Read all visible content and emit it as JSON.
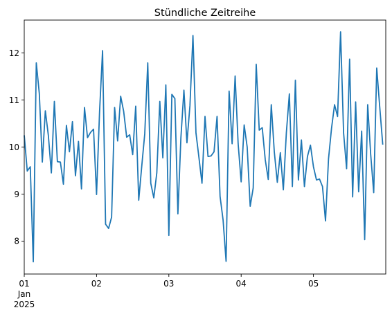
{
  "chart_data": {
    "type": "line",
    "title": "Stündliche Zeitreihe",
    "xlabel": "",
    "ylabel": "",
    "x_start": "2025-01-01T00:00",
    "x_end": "2025-01-06T00:00",
    "xlim": [
      "2025-01-01T00:00",
      "2025-01-06T00:00"
    ],
    "ylim": [
      7.3,
      12.7
    ],
    "grid": false,
    "x_ticks": [
      {
        "x": "2025-01-01T00:00",
        "lines": [
          "01",
          "Jan",
          "2025"
        ]
      },
      {
        "x": "2025-01-02T00:00",
        "lines": [
          "02"
        ]
      },
      {
        "x": "2025-01-03T00:00",
        "lines": [
          "03"
        ]
      },
      {
        "x": "2025-01-04T00:00",
        "lines": [
          "04"
        ]
      },
      {
        "x": "2025-01-05T00:00",
        "lines": [
          "05"
        ]
      }
    ],
    "y_ticks": [
      8,
      9,
      10,
      11,
      12
    ],
    "series": [
      {
        "color": "#1f77b4",
        "x_step_hours": 1,
        "values": [
          10.25,
          9.49,
          9.58,
          7.56,
          11.79,
          11.14,
          9.68,
          10.77,
          10.25,
          9.45,
          10.97,
          9.69,
          9.68,
          9.21,
          10.46,
          9.9,
          10.54,
          9.39,
          10.12,
          9.11,
          10.84,
          10.2,
          10.31,
          10.38,
          8.99,
          10.75,
          12.05,
          8.36,
          8.27,
          8.51,
          10.84,
          10.13,
          11.08,
          10.76,
          10.21,
          10.26,
          9.84,
          10.87,
          8.87,
          9.59,
          10.28,
          11.79,
          9.23,
          8.92,
          9.45,
          10.97,
          9.77,
          11.32,
          8.12,
          11.12,
          11.03,
          8.58,
          10.2,
          11.21,
          10.09,
          10.88,
          12.37,
          10.3,
          9.77,
          9.23,
          10.65,
          9.8,
          9.81,
          9.9,
          10.65,
          8.95,
          8.45,
          7.57,
          11.19,
          10.07,
          11.51,
          10.07,
          9.26,
          10.47,
          10.0,
          8.74,
          9.13,
          11.76,
          10.36,
          10.41,
          9.73,
          9.31,
          10.9,
          9.9,
          9.25,
          9.88,
          9.09,
          10.3,
          11.13,
          9.16,
          11.42,
          9.3,
          10.15,
          9.16,
          9.8,
          10.04,
          9.58,
          9.3,
          9.32,
          9.16,
          8.43,
          9.75,
          10.4,
          10.9,
          10.65,
          12.45,
          10.3,
          9.54,
          11.87,
          8.94,
          10.96,
          9.05,
          10.34,
          8.03,
          10.9,
          9.84,
          9.03,
          11.68,
          10.85,
          10.05
        ]
      }
    ]
  }
}
